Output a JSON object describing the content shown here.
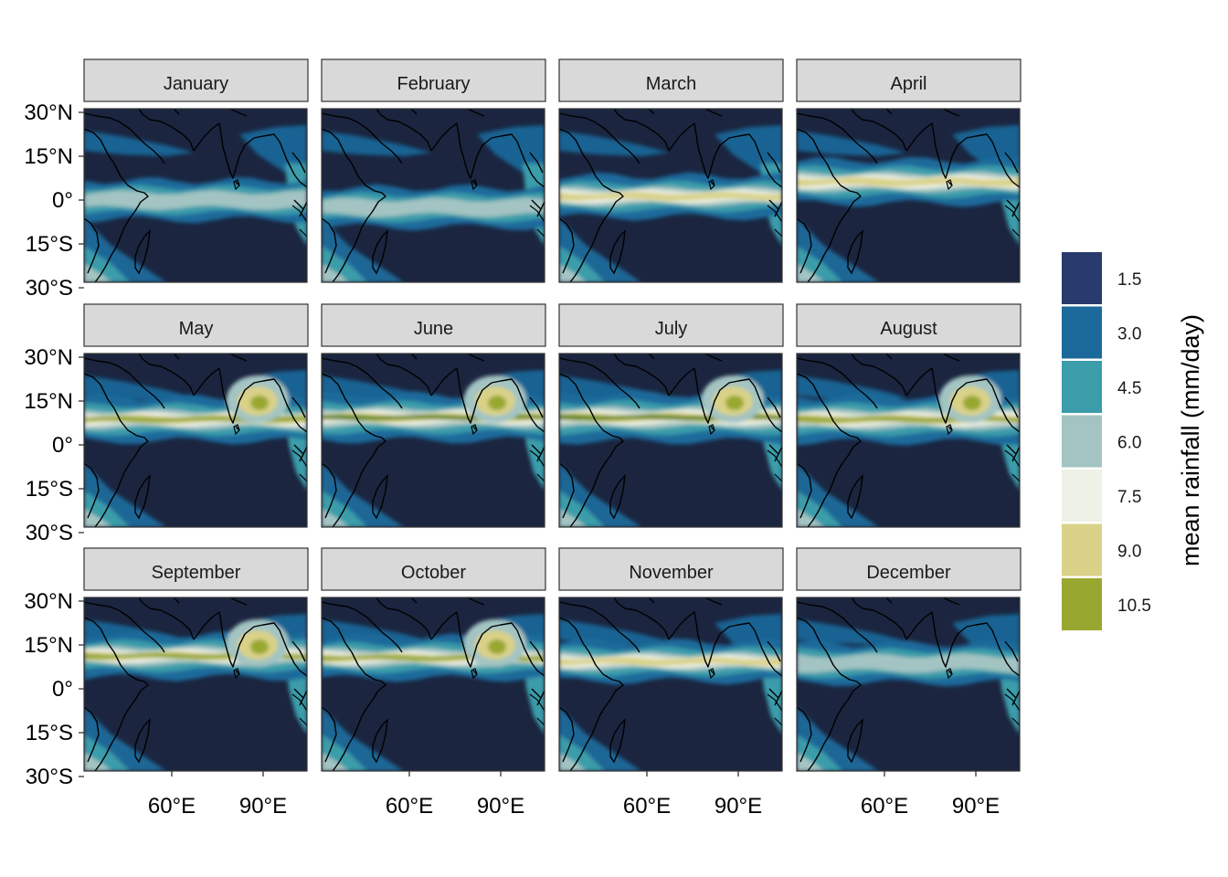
{
  "panels": [
    {
      "month": "January"
    },
    {
      "month": "February"
    },
    {
      "month": "March"
    },
    {
      "month": "April"
    },
    {
      "month": "May"
    },
    {
      "month": "June"
    },
    {
      "month": "July"
    },
    {
      "month": "August"
    },
    {
      "month": "September"
    },
    {
      "month": "October"
    },
    {
      "month": "November"
    },
    {
      "month": "December"
    }
  ],
  "y_ticks": [
    "30°N",
    "15°N",
    "0°",
    "15°S",
    "30°S"
  ],
  "x_ticks": [
    "60°E",
    "90°E"
  ],
  "legend": {
    "title": "mean rainfall (mm/day)",
    "entries": [
      {
        "label": "1.5",
        "color": "#283a6e"
      },
      {
        "label": "3.0",
        "color": "#1b6a9b"
      },
      {
        "label": "4.5",
        "color": "#3b9caa"
      },
      {
        "label": "6.0",
        "color": "#a3c4c2"
      },
      {
        "label": "7.5",
        "color": "#eef1e6"
      },
      {
        "label": "9.0",
        "color": "#d9d187"
      },
      {
        "label": "10.5",
        "color": "#98a72f"
      }
    ]
  },
  "colors": {
    "background_dark": "#1b2540",
    "heaviest_band": "#49751f",
    "coastline": "#000000",
    "strip_fill": "#d9d9d9"
  }
}
